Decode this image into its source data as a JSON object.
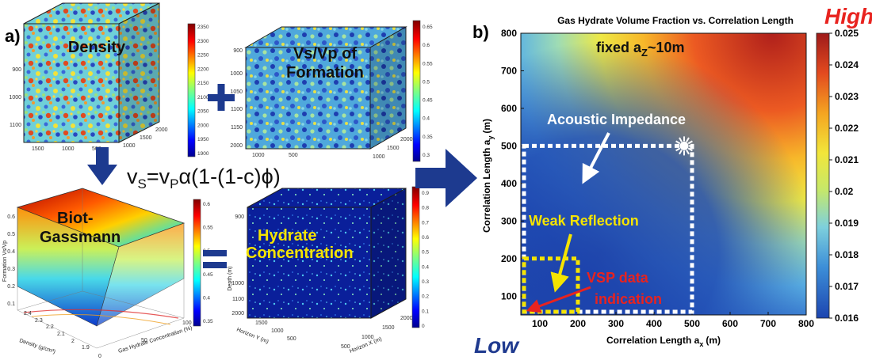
{
  "panel_a": {
    "label": "a)",
    "equation": {
      "v1": "v",
      "s1": "S",
      "eq": "=v",
      "s2": "P",
      "rest": "α(1-(1-c)ϕ)"
    },
    "density_cube": {
      "title": "Density",
      "left_ticks": [
        "900",
        "1000",
        "1100"
      ],
      "bottom_ticks": [
        "1500",
        "1000",
        "500"
      ],
      "right_ticks": [
        "1000",
        "1500",
        "2000"
      ],
      "colorbar_ticks": [
        "2350",
        "2300",
        "2250",
        "2200",
        "2150",
        "2100",
        "2050",
        "2000",
        "1950",
        "1900"
      ]
    },
    "vsvp_cube": {
      "title_line1": "Vs/Vp of",
      "title_line2": "Formation",
      "left_ticks": [
        "900",
        "1000",
        "1050",
        "1100",
        "1150",
        "2000"
      ],
      "bottom_ticks": [
        "1000",
        "500"
      ],
      "right_ticks": [
        "1000",
        "1500",
        "2000"
      ],
      "colorbar_ticks": [
        "0.65",
        "0.6",
        "0.55",
        "0.5",
        "0.45",
        "0.4",
        "0.35",
        "0.3"
      ]
    },
    "biot_panel": {
      "title_line1": "Biot-",
      "title_line2": "Gassmann",
      "zlabel": "Formation Vs/Vp",
      "xlabel": "Density (g/cm³)",
      "ylabel": "Gas Hydrate Concentration (%)",
      "z_ticks": [
        "0.6",
        "0.5",
        "0.4",
        "0.3",
        "0.2",
        "0.1"
      ],
      "x_ticks": [
        "2.4",
        "2.3",
        "2.2",
        "2.1",
        "2",
        "1.9"
      ],
      "y_ticks": [
        "0",
        "50",
        "100"
      ],
      "colorbar_ticks": [
        "0.6",
        "0.55",
        "0.5",
        "0.45",
        "0.4",
        "0.35"
      ]
    },
    "hydrate_cube": {
      "title_line1": "Hydrate",
      "title_line2": "Concentration",
      "depth_label": "Depth (m)",
      "left_ticks": [
        "900",
        "1000",
        "1100",
        "2000"
      ],
      "xlabel_y": "Horizon Y (m)",
      "xlabel_x": "Horizon X (m)",
      "bottom_ticks_y": [
        "1500",
        "1000",
        "500"
      ],
      "bottom_ticks_x": [
        "500",
        "1000",
        "1500",
        "2000"
      ],
      "colorbar_ticks": [
        "0.9",
        "0.8",
        "0.7",
        "0.6",
        "0.5",
        "0.4",
        "0.3",
        "0.2",
        "0.1",
        "0"
      ]
    }
  },
  "chart_data": {
    "type": "heatmap",
    "label": "b)",
    "title": "Gas Hydrate Volume Fraction vs. Correlation Length",
    "subtitle_main": "fixed a",
    "subtitle_sub": "Z",
    "subtitle_end": "~10m",
    "xlabel": "Correlation Length a",
    "xlabel_sub": "x",
    "xlabel_unit": "(m)",
    "ylabel": "Correlation Length a",
    "ylabel_sub": "y",
    "ylabel_unit": "(m)",
    "xlim": [
      50,
      800
    ],
    "ylim": [
      50,
      800
    ],
    "x_ticks": [
      100,
      200,
      300,
      400,
      500,
      600,
      700,
      800
    ],
    "y_ticks": [
      100,
      200,
      300,
      400,
      500,
      600,
      700,
      800
    ],
    "colorbar": {
      "min": 0.016,
      "max": 0.025,
      "ticks": [
        "0.025",
        "0.024",
        "0.023",
        "0.022",
        "0.021",
        "0.02",
        "0.019",
        "0.018",
        "0.017",
        "0.016"
      ]
    },
    "high_label": "High",
    "low_label": "Low",
    "annotations": {
      "acoustic": "Acoustic Impedance",
      "weak": "Weak Reflection",
      "vsp_line1": "VSP data",
      "vsp_line2": "indication"
    },
    "regions": [
      {
        "name": "acoustic",
        "x": [
          50,
          500
        ],
        "y": [
          50,
          500
        ]
      },
      {
        "name": "weak",
        "x": [
          50,
          200
        ],
        "y": [
          50,
          200
        ]
      }
    ],
    "colors": {
      "low": "#1a3fa8",
      "high": "#a21a18"
    }
  }
}
